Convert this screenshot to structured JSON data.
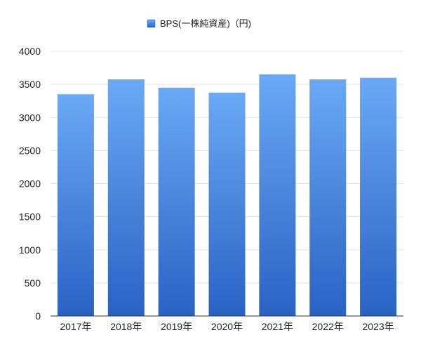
{
  "chart_data": {
    "type": "bar",
    "categories": [
      "2017年",
      "2018年",
      "2019年",
      "2020年",
      "2021年",
      "2022年",
      "2023年"
    ],
    "series": [
      {
        "name": "BPS(一株純資産)（円)",
        "values": [
          3350,
          3575,
          3450,
          3375,
          3650,
          3575,
          3600
        ]
      }
    ],
    "ylim": [
      0,
      4000
    ],
    "yticks": [
      0,
      500,
      1000,
      1500,
      2000,
      2500,
      3000,
      3500,
      4000
    ],
    "legend_position": "top-center",
    "grid": true,
    "colors": {
      "bar_top": "#6aa9f5",
      "bar_bottom": "#2a62c4",
      "grid": "#e3e3e3",
      "axis": "#333333"
    }
  }
}
